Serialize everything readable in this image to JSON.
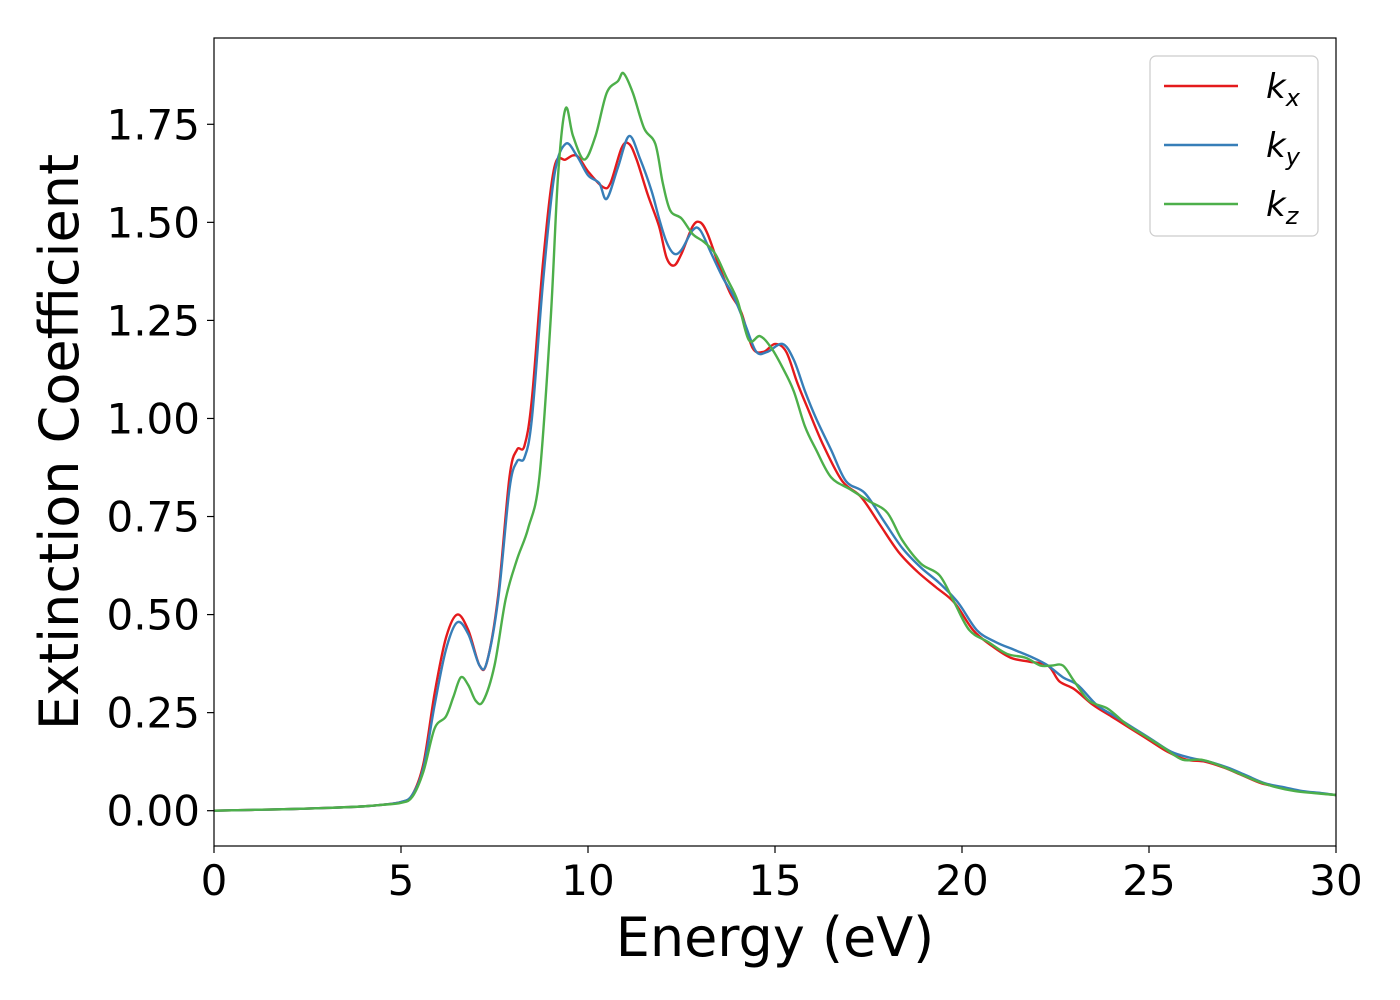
{
  "chart_data": {
    "type": "line",
    "title": "",
    "xlabel": "Energy (eV)",
    "ylabel": "Extinction Coefficient",
    "xlim": [
      0,
      30
    ],
    "ylim": [
      -0.09,
      1.97
    ],
    "xticks": [
      "0",
      "5",
      "10",
      "15",
      "20",
      "25",
      "30"
    ],
    "yticks": [
      "0.00",
      "0.25",
      "0.50",
      "0.75",
      "1.00",
      "1.25",
      "1.50",
      "1.75"
    ],
    "grid": false,
    "legend": {
      "position": "top-right"
    },
    "series": [
      {
        "name": "kx",
        "base": "k",
        "sub": "x",
        "color": "#e41a1c",
        "points": [
          [
            0,
            0.0
          ],
          [
            1,
            0.002
          ],
          [
            2,
            0.004
          ],
          [
            3,
            0.007
          ],
          [
            4,
            0.011
          ],
          [
            4.5,
            0.015
          ],
          [
            5,
            0.022
          ],
          [
            5.3,
            0.04
          ],
          [
            5.6,
            0.12
          ],
          [
            5.9,
            0.3
          ],
          [
            6.2,
            0.44
          ],
          [
            6.5,
            0.5
          ],
          [
            6.8,
            0.46
          ],
          [
            7.1,
            0.37
          ],
          [
            7.3,
            0.38
          ],
          [
            7.6,
            0.55
          ],
          [
            7.9,
            0.85
          ],
          [
            8.1,
            0.92
          ],
          [
            8.3,
            0.93
          ],
          [
            8.5,
            1.05
          ],
          [
            8.8,
            1.4
          ],
          [
            9.1,
            1.64
          ],
          [
            9.4,
            1.66
          ],
          [
            9.7,
            1.67
          ],
          [
            10.0,
            1.63
          ],
          [
            10.4,
            1.59
          ],
          [
            10.6,
            1.6
          ],
          [
            10.9,
            1.69
          ],
          [
            11.1,
            1.7
          ],
          [
            11.3,
            1.66
          ],
          [
            11.6,
            1.57
          ],
          [
            11.9,
            1.49
          ],
          [
            12.1,
            1.41
          ],
          [
            12.3,
            1.39
          ],
          [
            12.5,
            1.42
          ],
          [
            12.8,
            1.49
          ],
          [
            13.0,
            1.5
          ],
          [
            13.2,
            1.47
          ],
          [
            13.5,
            1.39
          ],
          [
            13.8,
            1.32
          ],
          [
            14.1,
            1.27
          ],
          [
            14.4,
            1.18
          ],
          [
            14.7,
            1.17
          ],
          [
            15.0,
            1.19
          ],
          [
            15.3,
            1.17
          ],
          [
            15.6,
            1.09
          ],
          [
            15.9,
            1.02
          ],
          [
            16.3,
            0.93
          ],
          [
            16.8,
            0.84
          ],
          [
            17.3,
            0.8
          ],
          [
            17.8,
            0.73
          ],
          [
            18.3,
            0.66
          ],
          [
            18.8,
            0.61
          ],
          [
            19.3,
            0.57
          ],
          [
            19.8,
            0.53
          ],
          [
            20.3,
            0.46
          ],
          [
            20.8,
            0.42
          ],
          [
            21.3,
            0.39
          ],
          [
            21.8,
            0.38
          ],
          [
            22.3,
            0.37
          ],
          [
            22.6,
            0.33
          ],
          [
            23.0,
            0.31
          ],
          [
            23.5,
            0.27
          ],
          [
            24.0,
            0.24
          ],
          [
            24.5,
            0.21
          ],
          [
            25.0,
            0.18
          ],
          [
            25.5,
            0.15
          ],
          [
            26.0,
            0.13
          ],
          [
            26.5,
            0.125
          ],
          [
            27.0,
            0.11
          ],
          [
            27.5,
            0.09
          ],
          [
            28.0,
            0.07
          ],
          [
            28.5,
            0.06
          ],
          [
            29.0,
            0.05
          ],
          [
            29.5,
            0.045
          ],
          [
            30.0,
            0.04
          ]
        ]
      },
      {
        "name": "ky",
        "base": "k",
        "sub": "y",
        "color": "#377eb8",
        "points": [
          [
            0,
            0.0
          ],
          [
            1,
            0.002
          ],
          [
            2,
            0.004
          ],
          [
            3,
            0.007
          ],
          [
            4,
            0.011
          ],
          [
            4.5,
            0.015
          ],
          [
            5,
            0.022
          ],
          [
            5.3,
            0.04
          ],
          [
            5.6,
            0.11
          ],
          [
            5.9,
            0.27
          ],
          [
            6.2,
            0.41
          ],
          [
            6.5,
            0.48
          ],
          [
            6.8,
            0.45
          ],
          [
            7.1,
            0.37
          ],
          [
            7.3,
            0.38
          ],
          [
            7.6,
            0.54
          ],
          [
            7.9,
            0.82
          ],
          [
            8.1,
            0.89
          ],
          [
            8.3,
            0.9
          ],
          [
            8.5,
            1.0
          ],
          [
            8.8,
            1.35
          ],
          [
            9.1,
            1.62
          ],
          [
            9.4,
            1.7
          ],
          [
            9.7,
            1.67
          ],
          [
            10.0,
            1.62
          ],
          [
            10.3,
            1.6
          ],
          [
            10.5,
            1.56
          ],
          [
            10.8,
            1.64
          ],
          [
            11.1,
            1.72
          ],
          [
            11.4,
            1.66
          ],
          [
            11.7,
            1.58
          ],
          [
            11.9,
            1.51
          ],
          [
            12.1,
            1.45
          ],
          [
            12.3,
            1.42
          ],
          [
            12.5,
            1.43
          ],
          [
            12.8,
            1.48
          ],
          [
            13.0,
            1.48
          ],
          [
            13.3,
            1.42
          ],
          [
            13.6,
            1.36
          ],
          [
            13.9,
            1.31
          ],
          [
            14.2,
            1.24
          ],
          [
            14.5,
            1.17
          ],
          [
            14.8,
            1.17
          ],
          [
            15.2,
            1.19
          ],
          [
            15.5,
            1.15
          ],
          [
            15.8,
            1.07
          ],
          [
            16.1,
            1.0
          ],
          [
            16.5,
            0.92
          ],
          [
            16.9,
            0.84
          ],
          [
            17.4,
            0.81
          ],
          [
            17.9,
            0.74
          ],
          [
            18.4,
            0.67
          ],
          [
            18.9,
            0.62
          ],
          [
            19.4,
            0.58
          ],
          [
            19.9,
            0.53
          ],
          [
            20.4,
            0.46
          ],
          [
            20.9,
            0.43
          ],
          [
            21.4,
            0.41
          ],
          [
            21.9,
            0.39
          ],
          [
            22.3,
            0.37
          ],
          [
            22.7,
            0.34
          ],
          [
            23.1,
            0.32
          ],
          [
            23.6,
            0.27
          ],
          [
            24.1,
            0.24
          ],
          [
            24.6,
            0.21
          ],
          [
            25.1,
            0.18
          ],
          [
            25.6,
            0.15
          ],
          [
            26.1,
            0.135
          ],
          [
            26.6,
            0.125
          ],
          [
            27.1,
            0.11
          ],
          [
            27.6,
            0.09
          ],
          [
            28.1,
            0.07
          ],
          [
            28.6,
            0.06
          ],
          [
            29.1,
            0.05
          ],
          [
            29.6,
            0.045
          ],
          [
            30.0,
            0.04
          ]
        ]
      },
      {
        "name": "kz",
        "base": "k",
        "sub": "z",
        "color": "#4daf4a",
        "points": [
          [
            0,
            0.0
          ],
          [
            1,
            0.002
          ],
          [
            2,
            0.004
          ],
          [
            3,
            0.007
          ],
          [
            4,
            0.011
          ],
          [
            4.5,
            0.015
          ],
          [
            5,
            0.02
          ],
          [
            5.3,
            0.035
          ],
          [
            5.6,
            0.1
          ],
          [
            5.9,
            0.21
          ],
          [
            6.2,
            0.24
          ],
          [
            6.4,
            0.29
          ],
          [
            6.6,
            0.34
          ],
          [
            6.8,
            0.32
          ],
          [
            7.0,
            0.28
          ],
          [
            7.2,
            0.28
          ],
          [
            7.5,
            0.37
          ],
          [
            7.8,
            0.54
          ],
          [
            8.1,
            0.64
          ],
          [
            8.4,
            0.72
          ],
          [
            8.7,
            0.85
          ],
          [
            9.0,
            1.25
          ],
          [
            9.2,
            1.62
          ],
          [
            9.4,
            1.79
          ],
          [
            9.6,
            1.72
          ],
          [
            9.9,
            1.66
          ],
          [
            10.2,
            1.72
          ],
          [
            10.5,
            1.83
          ],
          [
            10.8,
            1.86
          ],
          [
            10.95,
            1.88
          ],
          [
            11.2,
            1.83
          ],
          [
            11.5,
            1.74
          ],
          [
            11.8,
            1.7
          ],
          [
            12.0,
            1.6
          ],
          [
            12.2,
            1.53
          ],
          [
            12.5,
            1.51
          ],
          [
            12.8,
            1.47
          ],
          [
            13.1,
            1.45
          ],
          [
            13.4,
            1.42
          ],
          [
            13.7,
            1.36
          ],
          [
            14.0,
            1.3
          ],
          [
            14.3,
            1.2
          ],
          [
            14.6,
            1.21
          ],
          [
            14.9,
            1.18
          ],
          [
            15.2,
            1.13
          ],
          [
            15.5,
            1.07
          ],
          [
            15.8,
            0.98
          ],
          [
            16.1,
            0.92
          ],
          [
            16.5,
            0.85
          ],
          [
            17.0,
            0.82
          ],
          [
            17.5,
            0.79
          ],
          [
            18.0,
            0.76
          ],
          [
            18.4,
            0.69
          ],
          [
            18.9,
            0.63
          ],
          [
            19.4,
            0.6
          ],
          [
            19.8,
            0.53
          ],
          [
            20.2,
            0.46
          ],
          [
            20.7,
            0.43
          ],
          [
            21.2,
            0.4
          ],
          [
            21.7,
            0.39
          ],
          [
            22.1,
            0.37
          ],
          [
            22.4,
            0.37
          ],
          [
            22.7,
            0.37
          ],
          [
            23.0,
            0.33
          ],
          [
            23.4,
            0.28
          ],
          [
            23.9,
            0.26
          ],
          [
            24.4,
            0.22
          ],
          [
            24.9,
            0.19
          ],
          [
            25.4,
            0.16
          ],
          [
            25.9,
            0.13
          ],
          [
            26.4,
            0.13
          ],
          [
            26.9,
            0.115
          ],
          [
            27.4,
            0.095
          ],
          [
            27.9,
            0.075
          ],
          [
            28.4,
            0.06
          ],
          [
            28.9,
            0.05
          ],
          [
            29.4,
            0.045
          ],
          [
            30.0,
            0.04
          ]
        ]
      }
    ]
  }
}
